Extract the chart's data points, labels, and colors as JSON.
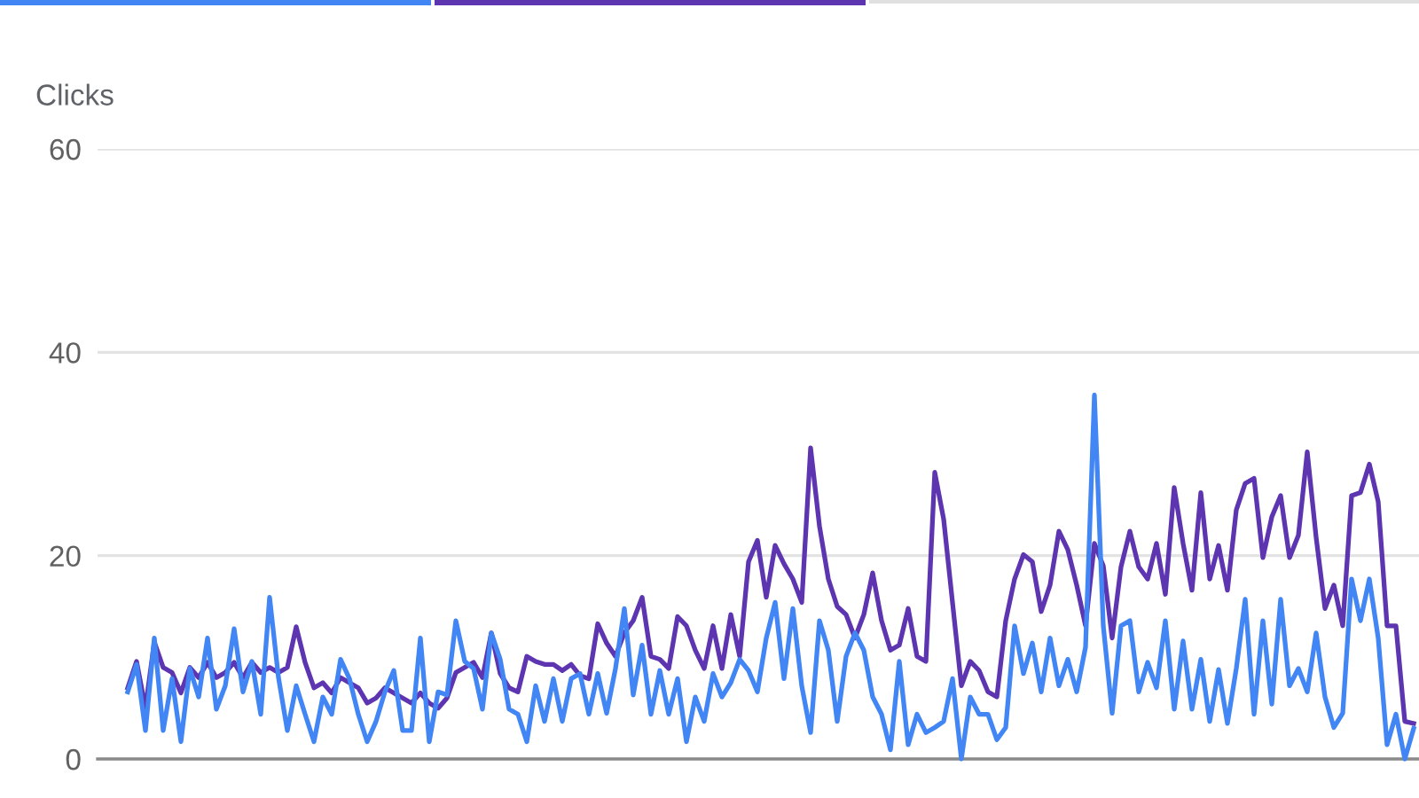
{
  "chart_data": {
    "type": "line",
    "ylabel": "Clicks",
    "categories": [
      null,
      null,
      null,
      null,
      null,
      null,
      null,
      null,
      null,
      null,
      null,
      null,
      null,
      null,
      null,
      null,
      null,
      null,
      null,
      null,
      null,
      null,
      null,
      null,
      null,
      null,
      null,
      null,
      null,
      null,
      null,
      null,
      null,
      null,
      null,
      null,
      null,
      null,
      null,
      null,
      null,
      null,
      null,
      null,
      null,
      null,
      null,
      null,
      null,
      null,
      null,
      null,
      null,
      null,
      null,
      null,
      null,
      null,
      null,
      null,
      null,
      null,
      null,
      null,
      null,
      null,
      null,
      null,
      null,
      null,
      null,
      null,
      null,
      null,
      null,
      null,
      null,
      null,
      null,
      null,
      null,
      null,
      null,
      null,
      null,
      null,
      null,
      null,
      null,
      null,
      null,
      null,
      null,
      null,
      null,
      null,
      null,
      null,
      null,
      null,
      null,
      null,
      null,
      null,
      null,
      null,
      null,
      null,
      null,
      null,
      null,
      null,
      null,
      null,
      null,
      null,
      null,
      null,
      null,
      null,
      null,
      null,
      null,
      null,
      null,
      null,
      null,
      null,
      null,
      null,
      null,
      null,
      null,
      null,
      null,
      null,
      null,
      null,
      null,
      null,
      null,
      null,
      null,
      null,
      null,
      null
    ],
    "series": [
      {
        "color": "#4285f4",
        "values": [
          6.6,
          9.3,
          2.8,
          11.9,
          2.8,
          7.9,
          1.7,
          8.9,
          6.1,
          11.9,
          4.9,
          7.2,
          12.8,
          6.6,
          9.6,
          4.4,
          15.9,
          8.0,
          2.8,
          7.2,
          4.4,
          1.7,
          6.1,
          4.4,
          9.8,
          7.9,
          4.4,
          1.7,
          3.7,
          6.6,
          8.7,
          2.8,
          2.8,
          11.9,
          1.7,
          6.6,
          6.3,
          13.6,
          9.6,
          8.9,
          4.9,
          12.4,
          9.8,
          4.9,
          4.4,
          1.7,
          7.2,
          3.7,
          7.9,
          3.7,
          7.9,
          8.4,
          4.4,
          8.4,
          4.5,
          8.9,
          14.8,
          6.3,
          11.2,
          4.4,
          8.7,
          4.4,
          7.9,
          1.7,
          6.1,
          3.7,
          8.4,
          6.1,
          7.5,
          9.8,
          8.7,
          6.6,
          11.9,
          15.4,
          7.9,
          14.8,
          7.2,
          2.6,
          13.6,
          10.7,
          3.7,
          10.1,
          12.4,
          10.7,
          6.1,
          4.4,
          0.9,
          9.6,
          1.4,
          4.4,
          2.6,
          3.1,
          3.7,
          7.9,
          0,
          6.1,
          4.4,
          4.4,
          1.9,
          3.1,
          13.1,
          8.4,
          11.4,
          6.6,
          11.9,
          7.2,
          9.8,
          6.6,
          11.0,
          35.8,
          13.1,
          4.5,
          13.1,
          13.6,
          6.6,
          9.5,
          7.0,
          13.6,
          4.9,
          11.6,
          4.9,
          9.8,
          3.7,
          8.8,
          3.5,
          8.9,
          15.7,
          4.4,
          13.6,
          5.4,
          15.7,
          7.2,
          8.9,
          6.6,
          12.4,
          6.1,
          3.1,
          4.5,
          17.7,
          13.6,
          17.7,
          11.9,
          1.4,
          4.4,
          0,
          3.0
        ]
      },
      {
        "color": "#5e35b1",
        "values": [
          7.0,
          9.6,
          5.0,
          11.5,
          9.0,
          8.5,
          6.5,
          9.0,
          8.0,
          9.5,
          8.0,
          8.5,
          9.5,
          8.0,
          9.5,
          8.5,
          9.0,
          8.5,
          9.0,
          13.0,
          9.5,
          7.0,
          7.5,
          6.5,
          8.0,
          7.5,
          7.0,
          5.5,
          6.0,
          7.0,
          6.5,
          6.0,
          5.5,
          6.5,
          5.5,
          5.0,
          6.0,
          8.5,
          9.0,
          9.5,
          8.0,
          12.4,
          8.4,
          7.0,
          6.6,
          10.1,
          9.6,
          9.3,
          9.3,
          8.7,
          9.3,
          8.2,
          7.9,
          13.3,
          11.4,
          10.1,
          12.4,
          13.6,
          15.9,
          10.1,
          9.8,
          8.9,
          14.0,
          13.1,
          10.7,
          8.9,
          13.1,
          8.9,
          14.2,
          10.1,
          19.4,
          21.5,
          15.9,
          21.0,
          19.2,
          17.7,
          15.4,
          30.6,
          22.9,
          17.7,
          15.0,
          14.2,
          11.9,
          14.2,
          18.3,
          13.6,
          10.7,
          11.2,
          14.8,
          10.1,
          9.6,
          28.2,
          23.6,
          15.4,
          7.2,
          9.6,
          8.7,
          6.6,
          6.1,
          13.6,
          17.7,
          20.1,
          19.4,
          14.5,
          17.1,
          22.4,
          20.6,
          17.1,
          13.1,
          21.2,
          19.0,
          11.9,
          18.9,
          22.4,
          18.9,
          17.7,
          21.2,
          16.2,
          26.7,
          21.2,
          16.6,
          26.2,
          17.7,
          21.0,
          16.6,
          24.5,
          27.1,
          27.6,
          19.8,
          23.8,
          25.9,
          19.8,
          22.0,
          30.2,
          21.8,
          14.8,
          17.1,
          13.1,
          25.9,
          26.2,
          29.0,
          25.3,
          13.1,
          13.1,
          3.7,
          3.5
        ]
      }
    ],
    "ylim": [
      0,
      60
    ],
    "yticks": [
      0,
      20,
      40,
      60
    ],
    "grid": "y",
    "tick_labels": "y"
  }
}
